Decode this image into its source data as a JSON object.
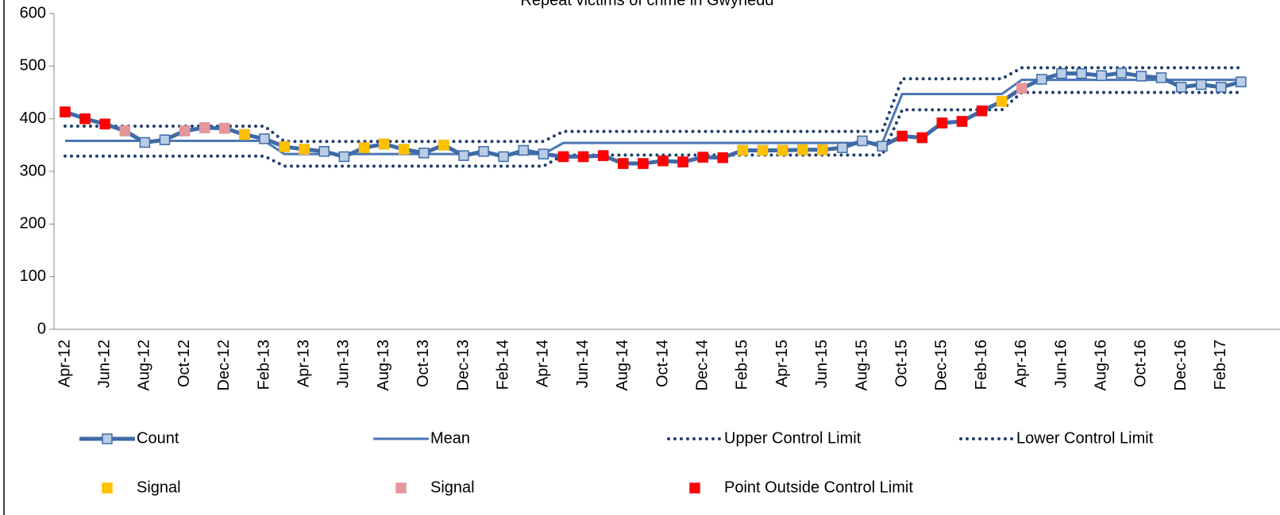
{
  "chart_data": {
    "type": "line",
    "title": "Repeat victims of crime in Gwynedd",
    "categories": [
      "Apr-12",
      null,
      "Jun-12",
      null,
      "Aug-12",
      null,
      "Oct-12",
      null,
      "Dec-12",
      null,
      "Feb-13",
      null,
      "Apr-13",
      null,
      "Jun-13",
      null,
      "Aug-13",
      null,
      "Oct-13",
      null,
      "Dec-13",
      null,
      "Feb-14",
      null,
      "Apr-14",
      null,
      "Jun-14",
      null,
      "Aug-14",
      null,
      "Oct-14",
      null,
      "Dec-14",
      null,
      "Feb-15",
      null,
      "Apr-15",
      null,
      "Jun-15",
      null,
      "Aug-15",
      null,
      "Oct-15",
      null,
      "Dec-15",
      null,
      "Feb-16",
      null,
      "Apr-16",
      null,
      "Jun-16",
      null,
      "Aug-16",
      null,
      "Oct-16",
      null,
      "Dec-16",
      null,
      "Feb-17",
      null
    ],
    "ylim": [
      0,
      600
    ],
    "yticks": [
      0,
      100,
      200,
      300,
      400,
      500,
      600
    ],
    "grid": false,
    "series": [
      {
        "name": "Count",
        "color": "#3f6aa6",
        "style": "line-markers",
        "marker_color": "#b9cde5",
        "values": [
          413,
          400,
          390,
          377,
          355,
          360,
          377,
          383,
          382,
          370,
          362,
          347,
          342,
          338,
          328,
          345,
          352,
          342,
          335,
          350,
          330,
          338,
          328,
          340,
          333,
          328,
          328,
          330,
          315,
          315,
          320,
          318,
          327,
          326,
          340,
          340,
          340,
          341,
          341,
          345,
          358,
          348,
          367,
          364,
          392,
          395,
          415,
          433,
          458,
          475,
          486,
          486,
          482,
          487,
          481,
          478,
          460,
          465,
          460,
          470
        ]
      },
      {
        "name": "Mean",
        "color": "#4a76b4",
        "style": "line",
        "values": [
          358,
          358,
          358,
          358,
          358,
          358,
          358,
          358,
          358,
          358,
          358,
          333,
          333,
          333,
          333,
          333,
          333,
          333,
          333,
          333,
          333,
          333,
          333,
          333,
          333,
          354,
          354,
          354,
          354,
          354,
          354,
          354,
          354,
          354,
          354,
          354,
          354,
          354,
          354,
          354,
          354,
          354,
          447,
          447,
          447,
          447,
          447,
          447,
          474,
          474,
          474,
          474,
          474,
          474,
          474,
          474,
          474,
          474,
          474,
          474
        ]
      },
      {
        "name": "Upper Control Limit",
        "color": "#1f3f6e",
        "style": "dotted",
        "values": [
          386,
          386,
          386,
          386,
          386,
          386,
          386,
          386,
          386,
          386,
          386,
          357,
          357,
          357,
          357,
          357,
          357,
          357,
          357,
          357,
          357,
          357,
          357,
          357,
          357,
          376,
          376,
          376,
          376,
          376,
          376,
          376,
          376,
          376,
          376,
          376,
          376,
          376,
          376,
          376,
          376,
          376,
          476,
          476,
          476,
          476,
          476,
          476,
          497,
          497,
          497,
          497,
          497,
          497,
          497,
          497,
          497,
          497,
          497,
          497
        ]
      },
      {
        "name": "Lower Control Limit",
        "color": "#1f3f6e",
        "style": "dotted",
        "values": [
          329,
          329,
          329,
          329,
          329,
          329,
          329,
          329,
          329,
          329,
          329,
          310,
          310,
          310,
          310,
          310,
          310,
          310,
          310,
          310,
          310,
          310,
          310,
          310,
          310,
          331,
          331,
          331,
          331,
          331,
          331,
          331,
          331,
          331,
          331,
          331,
          331,
          331,
          331,
          331,
          331,
          331,
          417,
          417,
          417,
          417,
          417,
          417,
          450,
          450,
          450,
          450,
          450,
          450,
          450,
          450,
          450,
          450,
          450,
          450
        ]
      },
      {
        "name": "Signal",
        "color": "#ffc000",
        "style": "markers",
        "values": [
          null,
          null,
          null,
          null,
          null,
          null,
          null,
          null,
          null,
          370,
          null,
          347,
          342,
          null,
          null,
          345,
          352,
          342,
          null,
          350,
          null,
          null,
          null,
          null,
          null,
          null,
          null,
          null,
          null,
          null,
          null,
          null,
          null,
          null,
          340,
          340,
          340,
          341,
          341,
          null,
          null,
          null,
          null,
          null,
          null,
          null,
          null,
          433,
          null,
          null,
          null,
          null,
          null,
          null,
          null,
          null,
          null,
          null,
          null,
          null
        ]
      },
      {
        "name": "Signal",
        "color": "#e6969b",
        "style": "markers",
        "values": [
          null,
          null,
          null,
          377,
          null,
          null,
          377,
          383,
          382,
          null,
          null,
          null,
          null,
          null,
          null,
          null,
          null,
          null,
          null,
          null,
          null,
          null,
          null,
          null,
          null,
          null,
          null,
          null,
          null,
          null,
          null,
          null,
          null,
          null,
          null,
          null,
          null,
          null,
          null,
          null,
          null,
          null,
          null,
          null,
          null,
          null,
          null,
          null,
          458,
          null,
          null,
          null,
          null,
          null,
          null,
          null,
          null,
          null,
          null,
          null
        ]
      },
      {
        "name": "Point Outside Control Limit",
        "color": "#ff0000",
        "style": "markers",
        "values": [
          413,
          400,
          390,
          null,
          null,
          null,
          null,
          null,
          null,
          null,
          null,
          null,
          null,
          null,
          null,
          null,
          null,
          null,
          null,
          null,
          null,
          null,
          null,
          null,
          null,
          328,
          328,
          330,
          315,
          315,
          320,
          318,
          327,
          326,
          null,
          null,
          null,
          null,
          null,
          null,
          null,
          null,
          367,
          364,
          392,
          395,
          415,
          null,
          null,
          null,
          null,
          null,
          null,
          null,
          null,
          null,
          null,
          null,
          null,
          null
        ]
      }
    ]
  }
}
